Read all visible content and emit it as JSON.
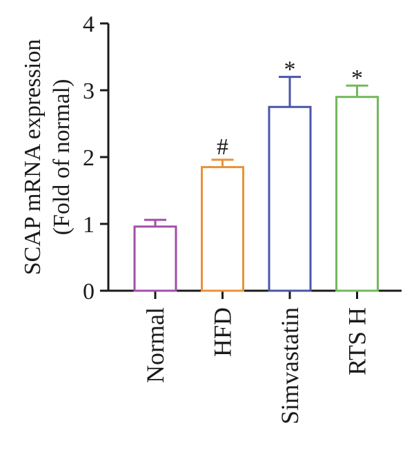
{
  "chart_data": {
    "type": "bar",
    "title": "",
    "ylabel_lines": [
      "SCAP mRNA expression",
      "(Fold of normal)"
    ],
    "xlabel": "",
    "ylim": [
      0,
      4
    ],
    "yticks": [
      0,
      1,
      2,
      3,
      4
    ],
    "grid": false,
    "legend": "none",
    "categories": [
      "Normal",
      "HFD",
      "Simvastatin",
      "RTS H"
    ],
    "values": [
      0.96,
      1.85,
      2.75,
      2.9
    ],
    "errors": [
      0.1,
      0.11,
      0.45,
      0.17
    ],
    "annotations": [
      "",
      "#",
      "*",
      "*"
    ],
    "colors": [
      "#a24ea8",
      "#e8923a",
      "#4a55a8",
      "#72b85a"
    ]
  }
}
